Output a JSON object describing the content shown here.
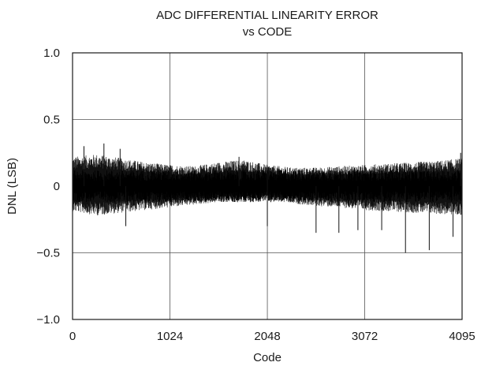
{
  "chart_data": {
    "type": "line",
    "title": "ADC DIFFERENTIAL LINEARITY ERROR",
    "subtitle": "vs CODE",
    "xlabel": "Code",
    "ylabel": "DNL (LSB)",
    "xlim": [
      0,
      4095
    ],
    "ylim": [
      -1.0,
      1.0
    ],
    "xticks": [
      0,
      1024,
      2048,
      3072,
      4095
    ],
    "xtick_labels": [
      "0",
      "1024",
      "2048",
      "3072",
      "4095"
    ],
    "yticks": [
      1.0,
      0.5,
      0,
      -0.5,
      -1.0
    ],
    "ytick_labels": [
      "1.0",
      "0.5",
      "0",
      "−0.5",
      "−1.0"
    ],
    "grid": true,
    "series": [
      {
        "envelope": {
          "x": [
            0,
            256,
            512,
            768,
            1024,
            1280,
            1536,
            1792,
            2048,
            2304,
            2560,
            2816,
            3072,
            3328,
            3584,
            3840,
            4095
          ],
          "upper": [
            0.22,
            0.24,
            0.21,
            0.18,
            0.16,
            0.15,
            0.18,
            0.2,
            0.16,
            0.14,
            0.14,
            0.15,
            0.16,
            0.17,
            0.18,
            0.19,
            0.21
          ],
          "lower": [
            -0.19,
            -0.22,
            -0.2,
            -0.18,
            -0.16,
            -0.14,
            -0.12,
            -0.12,
            -0.11,
            -0.13,
            -0.15,
            -0.16,
            -0.18,
            -0.19,
            -0.2,
            -0.21,
            -0.22
          ]
        },
        "spikes": [
          {
            "x": 120,
            "y": 0.3
          },
          {
            "x": 330,
            "y": 0.32
          },
          {
            "x": 500,
            "y": 0.28
          },
          {
            "x": 560,
            "y": -0.3
          },
          {
            "x": 1750,
            "y": 0.22
          },
          {
            "x": 2048,
            "y": -0.3
          },
          {
            "x": 2048,
            "y": 0.15
          },
          {
            "x": 2560,
            "y": -0.35
          },
          {
            "x": 2800,
            "y": -0.35
          },
          {
            "x": 3000,
            "y": -0.33
          },
          {
            "x": 3250,
            "y": -0.33
          },
          {
            "x": 3500,
            "y": -0.5
          },
          {
            "x": 3750,
            "y": -0.48
          },
          {
            "x": 4000,
            "y": -0.38
          },
          {
            "x": 4080,
            "y": 0.25
          }
        ]
      }
    ]
  }
}
